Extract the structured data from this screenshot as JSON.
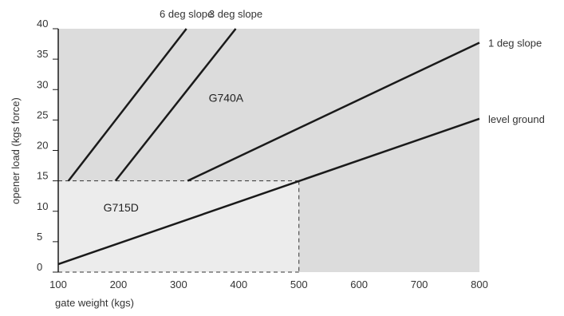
{
  "colors": {
    "region_a": "#dcdcdc",
    "region_d": "#ececec",
    "line": "#1a1a1a",
    "dash": "#333333",
    "text": "#333333"
  },
  "chart_data": {
    "type": "line",
    "xlabel": "gate weight (kgs)",
    "ylabel": "opener load (kgs force)",
    "xlim": [
      100,
      800
    ],
    "ylim": [
      0,
      40
    ],
    "xticks": [
      100,
      200,
      300,
      400,
      500,
      600,
      700,
      800
    ],
    "yticks": [
      0,
      5,
      10,
      15,
      20,
      25,
      30,
      35,
      40
    ],
    "regions": [
      {
        "name": "G740A",
        "x": 350,
        "y": 28
      },
      {
        "name": "G715D",
        "x": 175,
        "y": 10
      }
    ],
    "reference": {
      "x": 500,
      "y": 15,
      "style": "dashed"
    },
    "series": [
      {
        "name": "level ground",
        "x": [
          100,
          800
        ],
        "y": [
          1.3,
          25.2
        ]
      },
      {
        "name": "1 deg slope",
        "x": [
          315,
          800
        ],
        "y": [
          15,
          37.7
        ]
      },
      {
        "name": "3 deg slope",
        "x": [
          195,
          395
        ],
        "y": [
          15,
          40
        ]
      },
      {
        "name": "6 deg slope",
        "x": [
          117,
          313
        ],
        "y": [
          15,
          40
        ]
      }
    ]
  }
}
